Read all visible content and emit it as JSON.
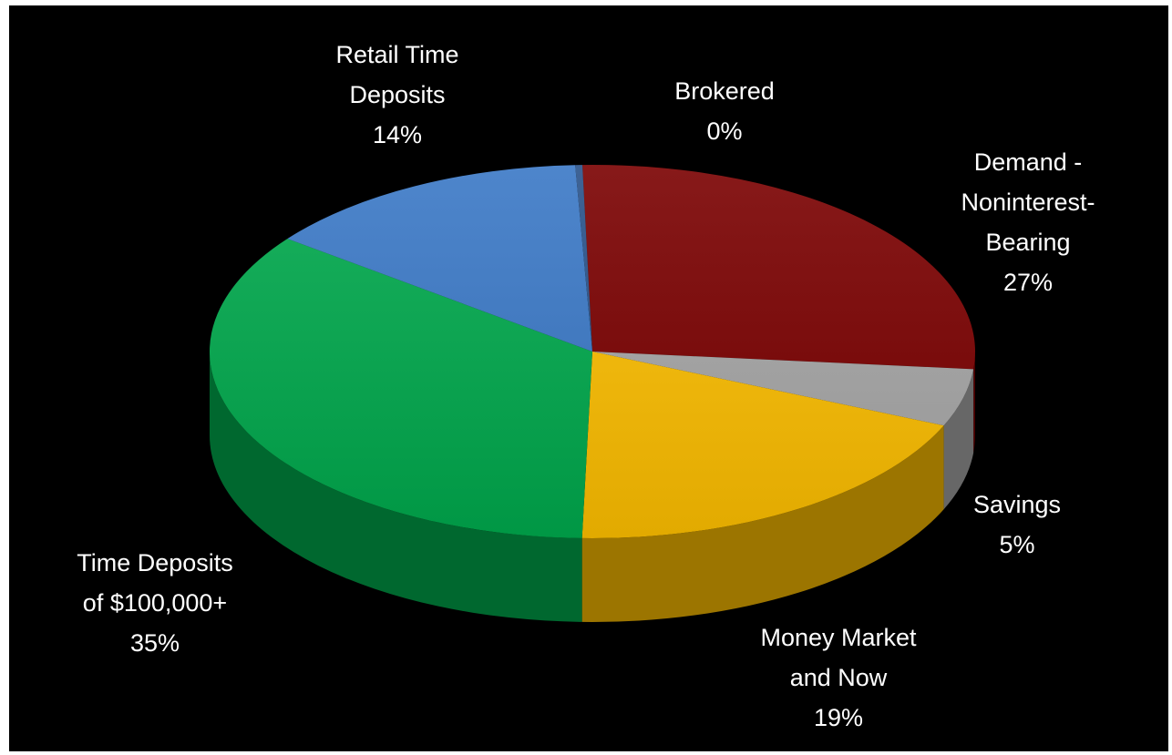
{
  "chart_data": {
    "type": "pie",
    "three_d": true,
    "title": "",
    "legend": "none",
    "slices": [
      {
        "name": "Demand - Noninterest-Bearing",
        "label_lines": [
          "Demand -",
          "Noninterest-",
          "Bearing"
        ],
        "value": 27,
        "value_label": "27%",
        "color": "#7a0000"
      },
      {
        "name": "Savings",
        "label_lines": [
          "Savings"
        ],
        "value": 5,
        "value_label": "5%",
        "color": "#a6a6a6"
      },
      {
        "name": "Money Market and Now",
        "label_lines": [
          "Money Market",
          "and Now"
        ],
        "value": 19,
        "value_label": "19%",
        "color": "#fbbd00"
      },
      {
        "name": "Time Deposits of $100,000+",
        "label_lines": [
          "Time Deposits",
          "of $100,000+"
        ],
        "value": 35,
        "value_label": "35%",
        "color": "#00a84c"
      },
      {
        "name": "Retail Time Deposits",
        "label_lines": [
          "Retail Time",
          "Deposits"
        ],
        "value": 14,
        "value_label": "14%",
        "color": "#3a78c6"
      },
      {
        "name": "Brokered",
        "label_lines": [
          "Brokered"
        ],
        "value": 0.3,
        "value_label": "0%",
        "color": "#29528a"
      }
    ]
  }
}
